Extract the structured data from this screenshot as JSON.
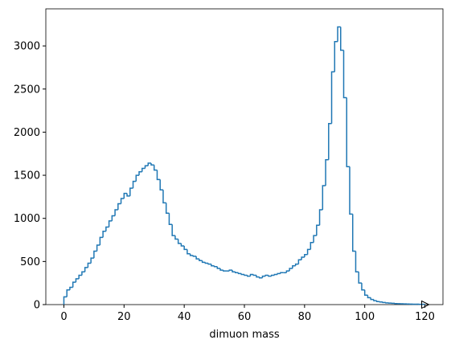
{
  "chart_data": {
    "type": "histogram",
    "xlabel": "dimuon mass",
    "color": "#1f77b4",
    "bins": [
      0,
      1,
      2,
      3,
      4,
      5,
      6,
      7,
      8,
      9,
      10,
      11,
      12,
      13,
      14,
      15,
      16,
      17,
      18,
      19,
      20,
      21,
      22,
      23,
      24,
      25,
      26,
      27,
      28,
      29,
      30,
      31,
      32,
      33,
      34,
      35,
      36,
      37,
      38,
      39,
      40,
      41,
      42,
      43,
      44,
      45,
      46,
      47,
      48,
      49,
      50,
      51,
      52,
      53,
      54,
      55,
      56,
      57,
      58,
      59,
      60,
      61,
      62,
      63,
      64,
      65,
      66,
      67,
      68,
      69,
      70,
      71,
      72,
      73,
      74,
      75,
      76,
      77,
      78,
      79,
      80,
      81,
      82,
      83,
      84,
      85,
      86,
      87,
      88,
      89,
      90,
      91,
      92,
      93,
      94,
      95,
      96,
      97,
      98,
      99,
      100,
      101,
      102,
      103,
      104,
      105,
      106,
      107,
      108,
      109,
      110,
      111,
      112,
      113,
      114,
      115,
      116,
      117,
      118,
      119,
      120
    ],
    "values": [
      90,
      170,
      200,
      260,
      300,
      340,
      380,
      430,
      480,
      540,
      620,
      690,
      780,
      850,
      900,
      970,
      1030,
      1100,
      1170,
      1230,
      1290,
      1260,
      1350,
      1430,
      1500,
      1540,
      1580,
      1610,
      1640,
      1620,
      1560,
      1450,
      1330,
      1180,
      1060,
      930,
      800,
      760,
      710,
      680,
      640,
      590,
      570,
      560,
      530,
      510,
      490,
      480,
      470,
      450,
      440,
      420,
      400,
      390,
      390,
      400,
      380,
      370,
      360,
      350,
      340,
      330,
      350,
      340,
      320,
      310,
      330,
      340,
      330,
      340,
      350,
      360,
      370,
      370,
      390,
      420,
      450,
      470,
      520,
      550,
      580,
      640,
      720,
      800,
      920,
      1100,
      1380,
      1680,
      2100,
      2700,
      3050,
      3220,
      2950,
      2400,
      1600,
      1050,
      620,
      380,
      250,
      170,
      110,
      80,
      60,
      45,
      35,
      30,
      25,
      20,
      18,
      15,
      12,
      10,
      9,
      8,
      7,
      6,
      5,
      5,
      4,
      3
    ],
    "xlim": [
      -6,
      126
    ],
    "ylim": [
      0,
      3430
    ],
    "xticks": [
      0,
      20,
      40,
      60,
      80,
      100,
      120
    ],
    "yticks": [
      0,
      500,
      1000,
      1500,
      2000,
      2500,
      3000
    ]
  }
}
